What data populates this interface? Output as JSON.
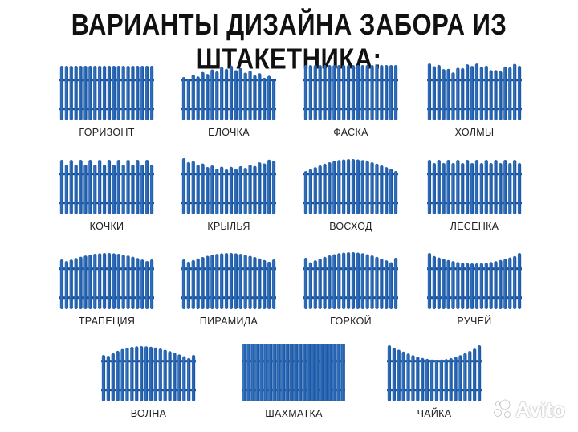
{
  "title": "ВАРИАНТЫ ДИЗАЙНА ЗАБОРА ИЗ ШТАКЕТНИКА:",
  "colors": {
    "picket": "#2563b0",
    "picket_light": "#4a86cf",
    "picket_dark": "#174a8c",
    "rail": "#1b4f94"
  },
  "designs": [
    {
      "label": "ГОРИЗОНТ",
      "profile": "flat"
    },
    {
      "label": "ЕЛОЧКА",
      "profile": "spruce"
    },
    {
      "label": "ФАСКА",
      "profile": "chamfer"
    },
    {
      "label": "ХОЛМЫ",
      "profile": "hills"
    },
    {
      "label": "КОЧКИ",
      "profile": "bumps"
    },
    {
      "label": "КРЫЛЬЯ",
      "profile": "wings"
    },
    {
      "label": "ВОСХОД",
      "profile": "sunrise"
    },
    {
      "label": "ЛЕСЕНКА",
      "profile": "ladder"
    },
    {
      "label": "ТРАПЕЦИЯ",
      "profile": "trapezoid"
    },
    {
      "label": "ПИРАМИДА",
      "profile": "pyramid"
    },
    {
      "label": "ГОРКОЙ",
      "profile": "arch"
    },
    {
      "label": "РУЧЕЙ",
      "profile": "stream"
    },
    {
      "label": "ВОЛНА",
      "profile": "wave"
    },
    {
      "label": "ШАХМАТКА",
      "profile": "checker"
    },
    {
      "label": "ЧАЙКА",
      "profile": "gull"
    }
  ],
  "watermark": {
    "text": "Avito",
    "icon": "avito-logo-icon"
  }
}
